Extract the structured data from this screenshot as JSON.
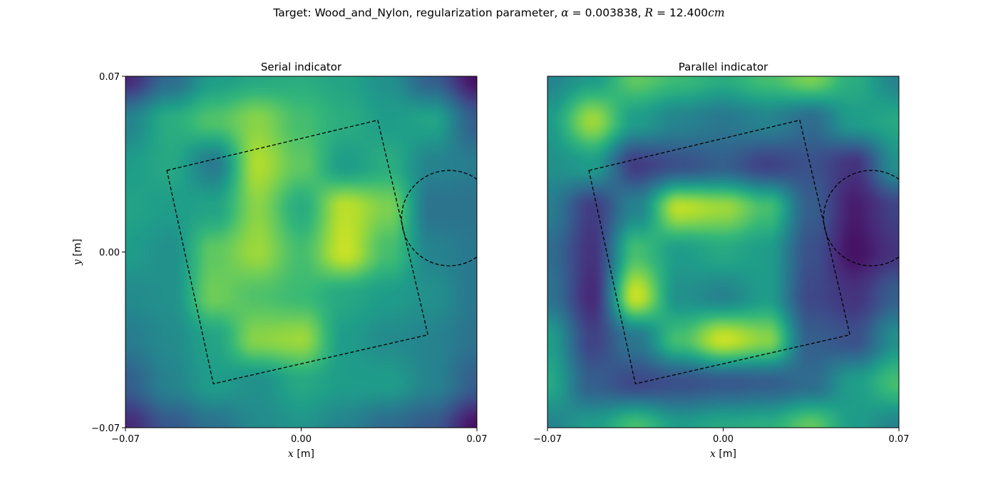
{
  "suptitle": {
    "prefix": "Target: Wood_and_Nylon, regularization parameter, ",
    "alpha_symbol": "α",
    "alpha_value": "0.003838",
    "radius_symbol": "R",
    "radius_value": "12.400",
    "radius_unit": "cm"
  },
  "chart_data": [
    {
      "type": "heatmap",
      "title": "Serial indicator",
      "xlabel": "x [m]",
      "ylabel": "y [m]",
      "xlim": [
        -0.07,
        0.07
      ],
      "ylim": [
        -0.07,
        0.07
      ],
      "xticks": [
        "−0.07",
        "0.00",
        "0.07"
      ],
      "yticks": [
        "−0.07",
        "0.00",
        "0.07"
      ],
      "colormap": "viridis",
      "grid": false,
      "image_data": {
        "grid_resolution": 9,
        "values": [
          [
            0.12,
            0.35,
            0.55,
            0.6,
            0.62,
            0.58,
            0.5,
            0.3,
            0.05
          ],
          [
            0.45,
            0.62,
            0.72,
            0.82,
            0.7,
            0.62,
            0.55,
            0.58,
            0.3
          ],
          [
            0.55,
            0.6,
            0.42,
            0.88,
            0.75,
            0.55,
            0.62,
            0.45,
            0.42
          ],
          [
            0.58,
            0.55,
            0.58,
            0.82,
            0.62,
            0.9,
            0.8,
            0.38,
            0.38
          ],
          [
            0.55,
            0.5,
            0.75,
            0.85,
            0.7,
            0.92,
            0.7,
            0.45,
            0.4
          ],
          [
            0.48,
            0.5,
            0.78,
            0.72,
            0.68,
            0.6,
            0.55,
            0.5,
            0.4
          ],
          [
            0.42,
            0.48,
            0.58,
            0.82,
            0.85,
            0.55,
            0.48,
            0.45,
            0.38
          ],
          [
            0.3,
            0.45,
            0.55,
            0.5,
            0.6,
            0.55,
            0.55,
            0.45,
            0.3
          ],
          [
            0.12,
            0.28,
            0.38,
            0.48,
            0.52,
            0.45,
            0.35,
            0.28,
            0.05
          ]
        ]
      },
      "overlays": {
        "square_vertices": [
          [
            -0.0535,
            0.0325
          ],
          [
            0.0305,
            0.0525
          ],
          [
            0.0505,
            -0.033
          ],
          [
            -0.035,
            -0.0525
          ]
        ],
        "circle": {
          "center": [
            0.059,
            0.0135
          ],
          "radius": 0.019
        },
        "line_style": "dashed",
        "line_color": "#000000"
      }
    },
    {
      "type": "heatmap",
      "title": "Parallel indicator",
      "xlabel": "x [m]",
      "ylabel": "",
      "xlim": [
        -0.07,
        0.07
      ],
      "ylim": [
        -0.07,
        0.07
      ],
      "xticks": [
        "−0.07",
        "0.00",
        "0.07"
      ],
      "yticks": [],
      "colormap": "viridis",
      "grid": false,
      "image_data": {
        "grid_resolution": 9,
        "values": [
          [
            0.45,
            0.55,
            0.75,
            0.68,
            0.62,
            0.7,
            0.8,
            0.62,
            0.45
          ],
          [
            0.55,
            0.85,
            0.55,
            0.45,
            0.4,
            0.45,
            0.35,
            0.55,
            0.6
          ],
          [
            0.5,
            0.55,
            0.18,
            0.25,
            0.3,
            0.2,
            0.25,
            0.15,
            0.5
          ],
          [
            0.42,
            0.18,
            0.45,
            0.9,
            0.85,
            0.7,
            0.3,
            0.08,
            0.2
          ],
          [
            0.35,
            0.15,
            0.7,
            0.55,
            0.6,
            0.55,
            0.25,
            0.05,
            0.15
          ],
          [
            0.38,
            0.12,
            0.92,
            0.5,
            0.45,
            0.55,
            0.22,
            0.15,
            0.3
          ],
          [
            0.55,
            0.2,
            0.4,
            0.7,
            0.92,
            0.82,
            0.3,
            0.25,
            0.5
          ],
          [
            0.6,
            0.3,
            0.22,
            0.25,
            0.28,
            0.3,
            0.35,
            0.55,
            0.7
          ],
          [
            0.45,
            0.55,
            0.7,
            0.55,
            0.6,
            0.62,
            0.75,
            0.55,
            0.45
          ]
        ]
      },
      "overlays": {
        "square_vertices": [
          [
            -0.0535,
            0.0325
          ],
          [
            0.0305,
            0.0525
          ],
          [
            0.0505,
            -0.033
          ],
          [
            -0.035,
            -0.0525
          ]
        ],
        "circle": {
          "center": [
            0.059,
            0.0135
          ],
          "radius": 0.019
        },
        "line_style": "dashed",
        "line_color": "#000000"
      }
    }
  ]
}
